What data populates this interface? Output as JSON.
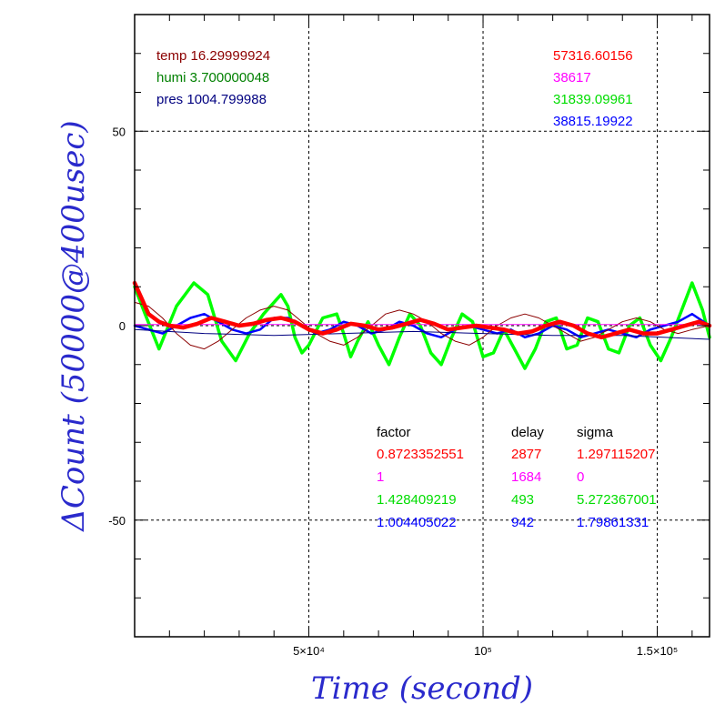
{
  "chart_data": {
    "type": "line",
    "xlabel": "Time (second)",
    "ylabel": "ΔCount (50000@400usec)",
    "xlim": [
      0,
      165000
    ],
    "ylim": [
      -80,
      80
    ],
    "grid": true,
    "xticks": [
      {
        "value": 50000,
        "label": "5×10⁴"
      },
      {
        "value": 100000,
        "label": "10⁵"
      },
      {
        "value": 150000,
        "label": "1.5×10⁵"
      }
    ],
    "yticks": [
      {
        "value": 50,
        "label": "50"
      },
      {
        "value": 0,
        "label": "0"
      },
      {
        "value": -50,
        "label": "-50"
      }
    ],
    "env_values": [
      {
        "text": "temp 16.29999924",
        "color": "#8b0000"
      },
      {
        "text": "humi 3.700000048",
        "color": "#008000"
      },
      {
        "text": "pres 1004.799988",
        "color": "#000080"
      }
    ],
    "mean_values": [
      {
        "text": "57316.60156",
        "color": "#ff0000"
      },
      {
        "text": "38617",
        "color": "#ff00ff"
      },
      {
        "text": "31839.09961",
        "color": "#00dd00"
      },
      {
        "text": "38815.19922",
        "color": "#0000ff"
      }
    ],
    "fit_table": {
      "headers": [
        "factor",
        "delay",
        "sigma"
      ],
      "rows": [
        {
          "factor": "0.8723352551",
          "delay": "2877",
          "sigma": "1.297115207",
          "color": "#ff0000"
        },
        {
          "factor": "1",
          "delay": "1684",
          "sigma": "0",
          "color": "#ff00ff"
        },
        {
          "factor": "1.428409219",
          "delay": "493",
          "sigma": "5.272367001",
          "color": "#00dd00"
        },
        {
          "factor": "1.004405022",
          "delay": "942",
          "sigma": "1.79861331",
          "color": "#0000ff"
        }
      ]
    },
    "series": [
      {
        "color": "#00ff00",
        "x": [
          0,
          3000,
          7000,
          12000,
          17000,
          21000,
          25000,
          29000,
          33000,
          37000,
          40000,
          42000,
          44000,
          46000,
          48000,
          50000,
          54000,
          58000,
          60000,
          62000,
          64000,
          67000,
          70000,
          73000,
          76000,
          79000,
          82000,
          85000,
          88000,
          91000,
          94000,
          97000,
          100000,
          103000,
          106000,
          109000,
          112000,
          115000,
          118000,
          121000,
          124000,
          127000,
          130000,
          133000,
          136000,
          139000,
          142000,
          145000,
          148000,
          151000,
          154000,
          157000,
          160000,
          163000,
          165000
        ],
        "y": [
          10,
          3,
          -6,
          5,
          11,
          8,
          -4,
          -9,
          -2,
          3,
          6,
          8,
          5,
          -3,
          -7,
          -5,
          2,
          3,
          -2,
          -8,
          -4,
          1,
          -5,
          -10,
          -3,
          3,
          0,
          -7,
          -10,
          -3,
          3,
          1,
          -8,
          -7,
          -1,
          -6,
          -11,
          -6,
          1,
          2,
          -6,
          -5,
          2,
          1,
          -6,
          -7,
          0,
          2,
          -5,
          -9,
          -3,
          4,
          11,
          4,
          -3
        ]
      },
      {
        "color": "#0000ff",
        "x": [
          0,
          4000,
          8000,
          12000,
          16000,
          20000,
          24000,
          28000,
          32000,
          36000,
          40000,
          44000,
          48000,
          52000,
          56000,
          60000,
          64000,
          68000,
          72000,
          76000,
          80000,
          84000,
          88000,
          92000,
          96000,
          100000,
          104000,
          108000,
          112000,
          116000,
          120000,
          124000,
          128000,
          132000,
          136000,
          140000,
          144000,
          148000,
          152000,
          156000,
          160000,
          165000
        ],
        "y": [
          0,
          -1,
          -2,
          0,
          2,
          3,
          1,
          -1,
          -2,
          -1,
          2,
          2,
          0,
          -2,
          -1,
          1,
          0,
          -2,
          -1,
          1,
          0,
          -2,
          -3,
          -1,
          0,
          -1,
          -2,
          -1,
          -3,
          -2,
          0,
          -1,
          -3,
          -2,
          -1,
          -2,
          -3,
          -1,
          0,
          1,
          3,
          0
        ]
      },
      {
        "color": "#8b0000",
        "x": [
          0,
          4000,
          8000,
          12000,
          16000,
          20000,
          24000,
          28000,
          32000,
          36000,
          40000,
          44000,
          48000,
          52000,
          56000,
          60000,
          64000,
          68000,
          72000,
          76000,
          80000,
          84000,
          88000,
          92000,
          96000,
          100000,
          104000,
          108000,
          112000,
          116000,
          120000,
          124000,
          128000,
          132000,
          136000,
          140000,
          144000,
          148000,
          152000,
          156000,
          160000,
          165000
        ],
        "y": [
          6,
          5,
          2,
          -2,
          -5,
          -6,
          -4,
          -1,
          2,
          4,
          5,
          4,
          1,
          -2,
          -4,
          -5,
          -3,
          0,
          3,
          4,
          3,
          1,
          -2,
          -4,
          -5,
          -3,
          0,
          2,
          3,
          2,
          0,
          -2,
          -4,
          -3,
          -1,
          1,
          2,
          1,
          -1,
          -2,
          -1,
          0
        ]
      },
      {
        "color": "#000080",
        "x": [
          0,
          20000,
          40000,
          60000,
          80000,
          100000,
          120000,
          140000,
          165000
        ],
        "y": [
          -1,
          -2,
          -2.5,
          -2,
          -1.5,
          -2,
          -2.5,
          -2.5,
          -3.5
        ]
      },
      {
        "color": "#ff00ff",
        "x": [
          0,
          165000
        ],
        "y": [
          0.3,
          0.3
        ]
      },
      {
        "color": "#ff0000",
        "x": [
          0,
          2000,
          4000,
          7000,
          10000,
          14000,
          18000,
          22000,
          26000,
          30000,
          34000,
          38000,
          42000,
          46000,
          50000,
          54000,
          58000,
          62000,
          66000,
          70000,
          74000,
          78000,
          82000,
          86000,
          90000,
          94000,
          98000,
          102000,
          106000,
          110000,
          114000,
          118000,
          122000,
          126000,
          130000,
          134000,
          138000,
          142000,
          146000,
          150000,
          154000,
          158000,
          162000,
          165000
        ],
        "y": [
          11,
          7,
          3,
          1,
          0,
          -0.5,
          0.5,
          2,
          1,
          0,
          0.5,
          1.5,
          2,
          1,
          -1,
          -2,
          -1,
          0.5,
          0,
          -1,
          -0.5,
          0.5,
          1.5,
          0.5,
          -1,
          -0.5,
          0,
          -0.5,
          -1,
          -2,
          -1.5,
          0,
          1,
          0,
          -2,
          -3,
          -2,
          -1,
          -2,
          -2,
          -1,
          0,
          1,
          0
        ]
      }
    ]
  }
}
